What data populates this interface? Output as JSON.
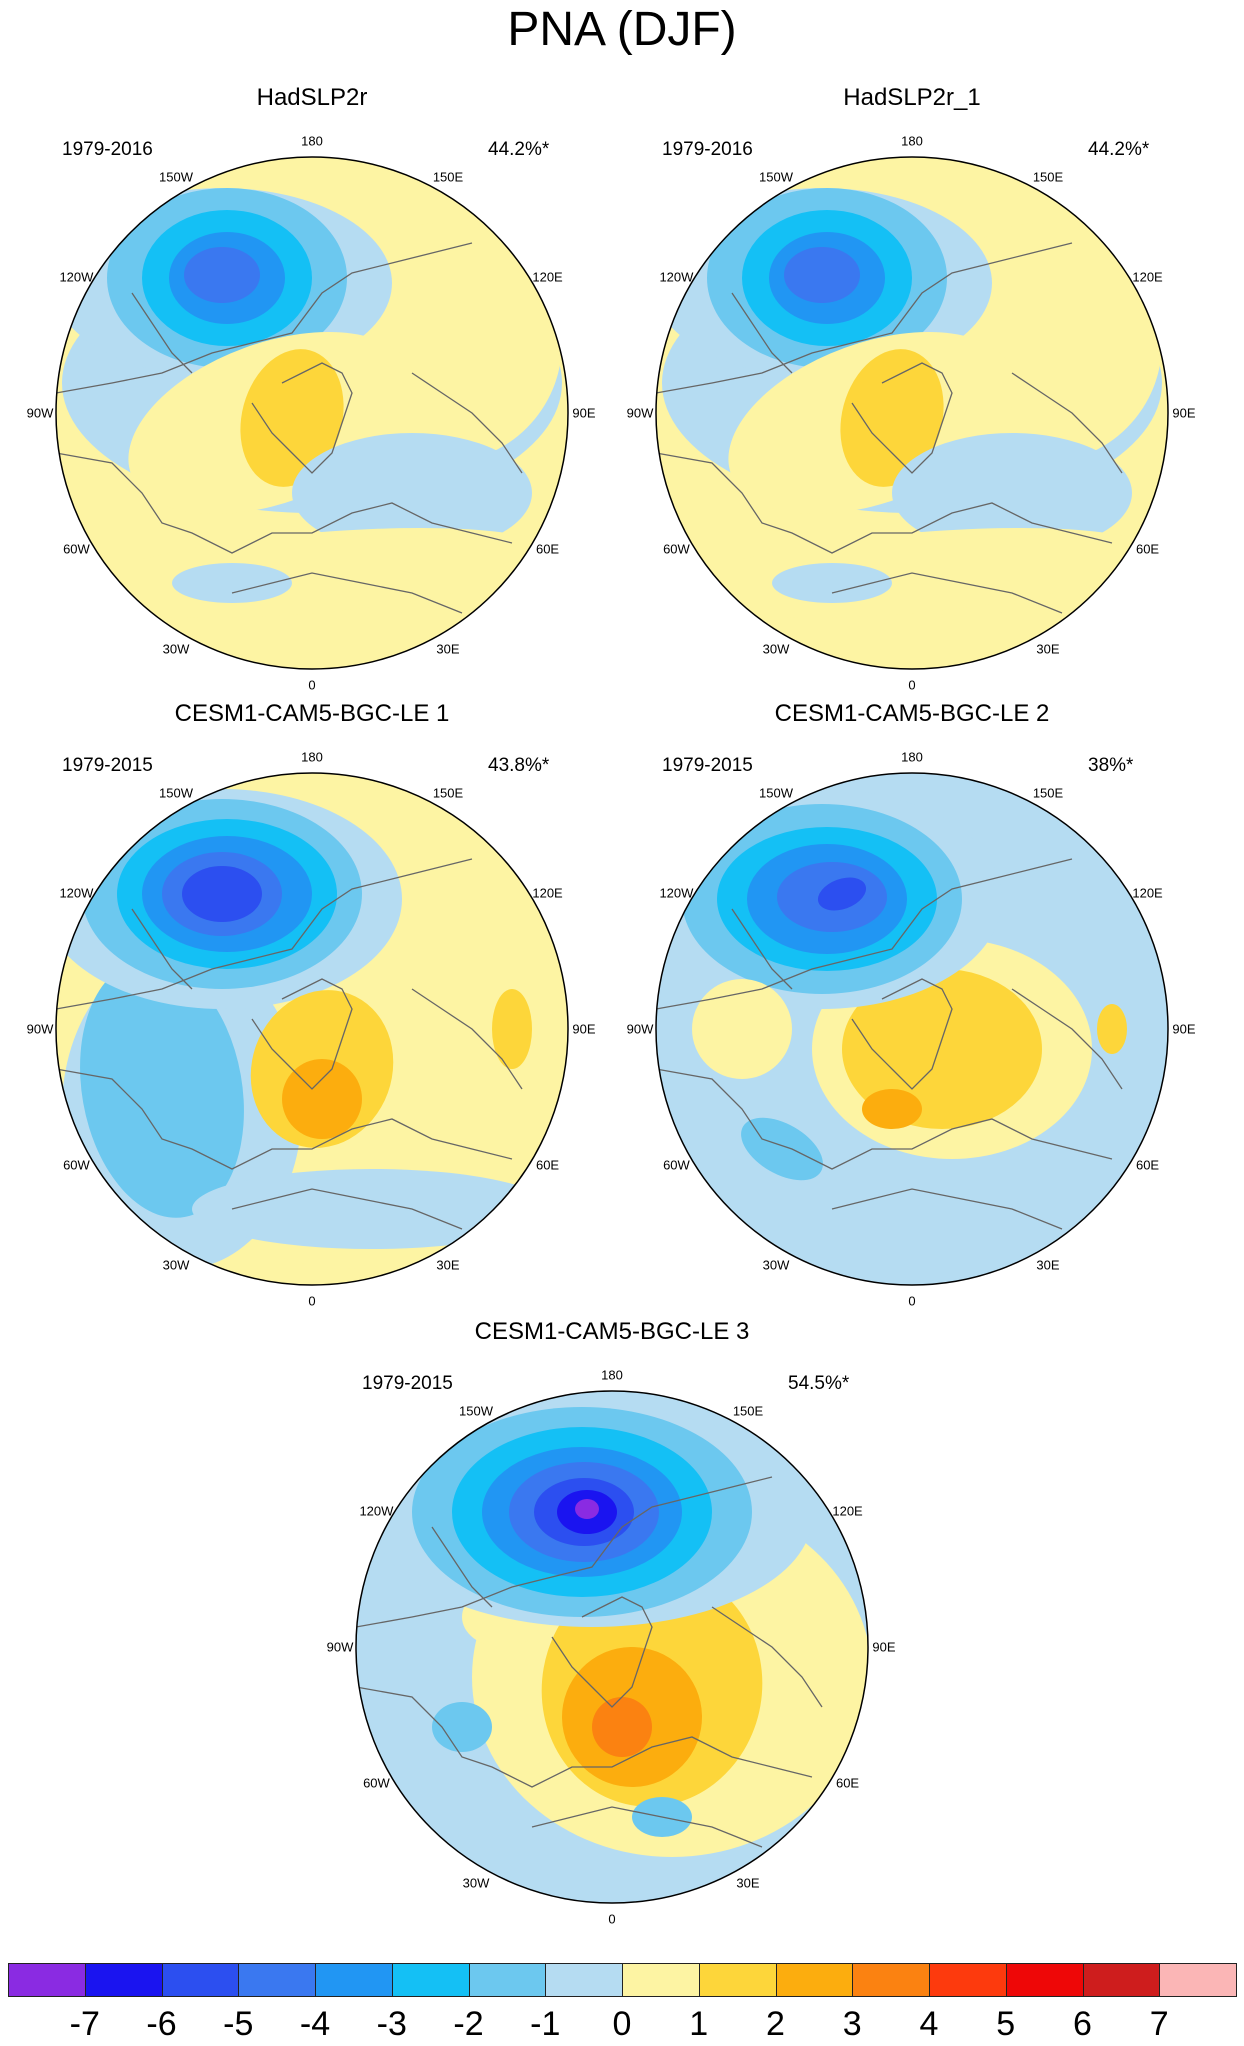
{
  "title": "PNA (DJF)",
  "colors": {
    "c_m7": "#8a2be2",
    "c_m6": "#1a14f0",
    "c_m5": "#2c4ff0",
    "c_m4": "#3a78f0",
    "c_m3": "#2196f3",
    "c_m2": "#14c0f5",
    "c_m1": "#6cc8ef",
    "c_0": "#b5dcf2",
    "c_1": "#fdf4a3",
    "c_2": "#fdd63a",
    "c_3": "#fcad0e",
    "c_4": "#fb8211",
    "c_5": "#fd3a0d",
    "c_6": "#ee0707",
    "c_7": "#ce1d1d",
    "c_8": "#fbb6b6",
    "coast": "#666666",
    "border": "#000000"
  },
  "panels": [
    {
      "title": "HadSLP2r",
      "period": "1979-2016",
      "variance": "44.2%*"
    },
    {
      "title": "HadSLP2r_1",
      "period": "1979-2016",
      "variance": "44.2%*"
    },
    {
      "title": "CESM1-CAM5-BGC-LE 1",
      "period": "1979-2015",
      "variance": "43.8%*"
    },
    {
      "title": "CESM1-CAM5-BGC-LE 2",
      "period": "1979-2015",
      "variance": "38%*"
    },
    {
      "title": "CESM1-CAM5-BGC-LE 3",
      "period": "1979-2015",
      "variance": "54.5%*"
    }
  ],
  "longitude_labels": [
    "180",
    "150E",
    "120E",
    "90E",
    "60E",
    "30E",
    "0",
    "30W",
    "60W",
    "90W",
    "120W",
    "150W"
  ],
  "colorbar": {
    "labels": [
      "-7",
      "-6",
      "-5",
      "-4",
      "-3",
      "-2",
      "-1",
      "0",
      "1",
      "2",
      "3",
      "4",
      "5",
      "6",
      "7"
    ],
    "colors": [
      "#8a2be2",
      "#1a14f0",
      "#2c4ff0",
      "#3a78f0",
      "#2196f3",
      "#14c0f5",
      "#6cc8ef",
      "#b5dcf2",
      "#fdf4a3",
      "#fdd63a",
      "#fcad0e",
      "#fb8211",
      "#fd3a0d",
      "#ee0707",
      "#ce1d1d",
      "#fbb6b6"
    ]
  }
}
